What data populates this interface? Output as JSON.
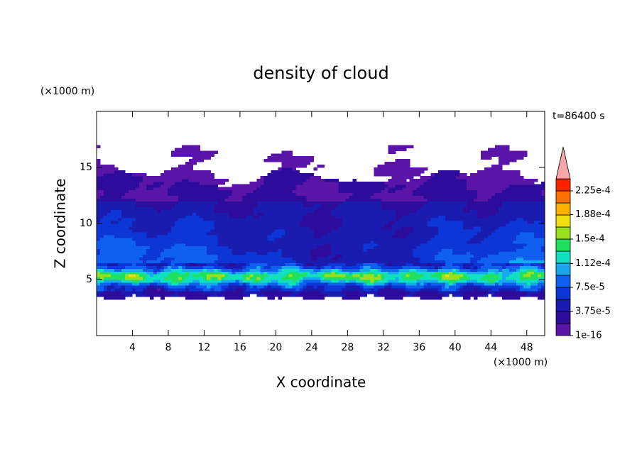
{
  "chart_data": {
    "type": "contour",
    "title": "density of cloud",
    "x_label": "X coordinate",
    "y_label": "Z coordinate",
    "x_unit": "(×1000 m)",
    "y_unit": "(×1000 m)",
    "annotation": "t=86400 s",
    "xlim": [
      0,
      50
    ],
    "ylim": [
      0,
      20
    ],
    "xticks": [
      4,
      8,
      12,
      16,
      20,
      24,
      28,
      32,
      36,
      40,
      44,
      48
    ],
    "yticks": [
      5,
      10,
      15
    ],
    "colorbar": {
      "clim": [
        1e-16,
        0.00024375
      ],
      "ticks": [
        1e-16,
        {
          "value": 3.75e-05,
          "label": "3.75e-5"
        },
        {
          "value": 7.5e-05,
          "label": "7.5e-5"
        },
        {
          "value": 0.000112,
          "label": "1.12e-4"
        },
        {
          "value": 0.00015,
          "label": "1.5e-4"
        },
        {
          "value": 0.000188,
          "label": "1.88e-4"
        },
        {
          "value": 0.000225,
          "label": "2.25e-4"
        }
      ],
      "colors": [
        "#5a14a8",
        "#2d0c9c",
        "#1a1cb0",
        "#0d36d6",
        "#1060f0",
        "#18a8f0",
        "#10e0c0",
        "#20e060",
        "#98e020",
        "#f0e010",
        "#ffb000",
        "#ff7000",
        "#ff2000"
      ],
      "extend_color": "#f4a8a8"
    }
  }
}
